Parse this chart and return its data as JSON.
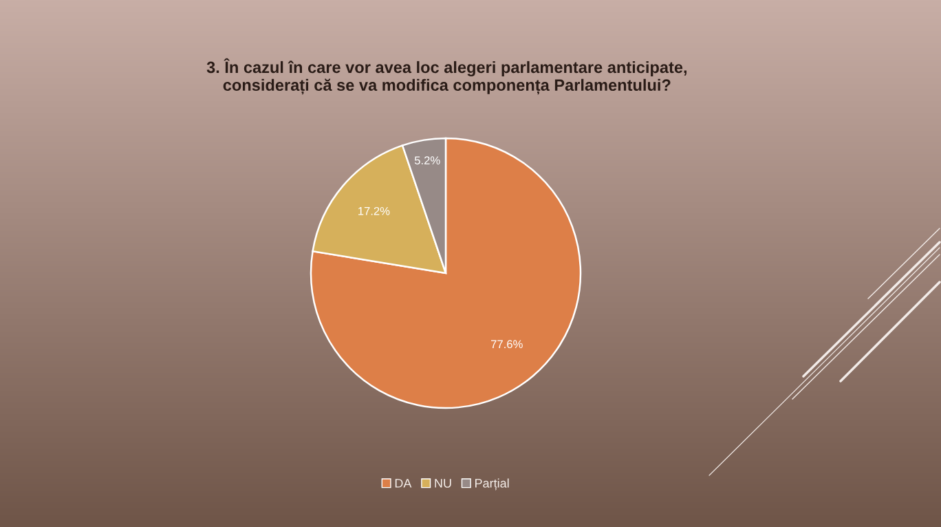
{
  "chart_data": {
    "type": "pie",
    "title": "3. În cazul în care vor avea loc alegeri parlamentare anticipate,\nconsiderați că se va modifica componența Parlamentului?",
    "categories": [
      "DA",
      "NU",
      "Parțial"
    ],
    "values": [
      77.6,
      17.2,
      5.2
    ],
    "colors": [
      "#dd7f48",
      "#d6b05b",
      "#978a87"
    ],
    "value_labels": [
      "77.6%",
      "17.2%",
      "5.2%"
    ],
    "legend": "bottom"
  }
}
